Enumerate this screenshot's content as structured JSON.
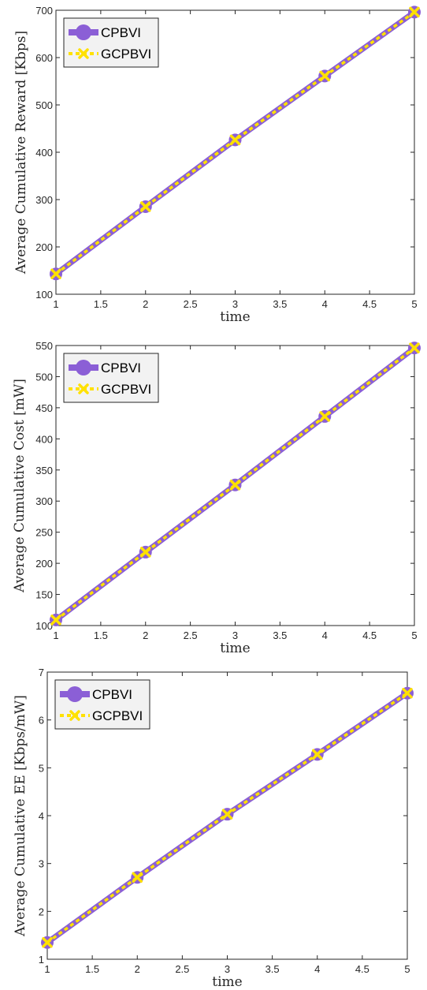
{
  "colors": {
    "series1": "#8b5fd6",
    "series2": "#ffe100",
    "axis": "#262626",
    "legend_bg": "#f2f2f2"
  },
  "chart_data": [
    {
      "type": "line",
      "xlabel": "time",
      "ylabel": "Average Cumulative Reward [Kbps]",
      "xlim": [
        1,
        5
      ],
      "ylim": [
        100,
        700
      ],
      "xticks": [
        "1",
        "1.5",
        "2",
        "2.5",
        "3",
        "3.5",
        "4",
        "4.5",
        "5"
      ],
      "yticks": [
        "100",
        "200",
        "300",
        "400",
        "500",
        "600",
        "700"
      ],
      "x": [
        1,
        2,
        3,
        4,
        5
      ],
      "legend": "top-left",
      "series": [
        {
          "name": "CPBVI",
          "values": [
            143,
            285,
            426,
            561,
            696
          ]
        },
        {
          "name": "GCPBVI",
          "values": [
            143,
            285,
            426,
            561,
            696
          ]
        }
      ]
    },
    {
      "type": "line",
      "xlabel": "time",
      "ylabel": "Average Cumulative Cost [mW]",
      "xlim": [
        1,
        5
      ],
      "ylim": [
        100,
        550
      ],
      "xticks": [
        "1",
        "1.5",
        "2",
        "2.5",
        "3",
        "3.5",
        "4",
        "4.5",
        "5"
      ],
      "yticks": [
        "100",
        "150",
        "200",
        "250",
        "300",
        "350",
        "400",
        "450",
        "500",
        "550"
      ],
      "x": [
        1,
        2,
        3,
        4,
        5
      ],
      "legend": "top-left",
      "series": [
        {
          "name": "CPBVI",
          "values": [
            109,
            218,
            326,
            436,
            546
          ]
        },
        {
          "name": "GCPBVI",
          "values": [
            109,
            218,
            326,
            436,
            546
          ]
        }
      ]
    },
    {
      "type": "line",
      "xlabel": "time",
      "ylabel": "Average Cumulative EE [Kbps/mW]",
      "xlim": [
        1,
        5
      ],
      "ylim": [
        1,
        7
      ],
      "xticks": [
        "1",
        "1.5",
        "2",
        "2.5",
        "3",
        "3.5",
        "4",
        "4.5",
        "5"
      ],
      "yticks": [
        "1",
        "2",
        "3",
        "4",
        "5",
        "6",
        "7"
      ],
      "x": [
        1,
        2,
        3,
        4,
        5
      ],
      "legend": "top-left",
      "series": [
        {
          "name": "CPBVI",
          "values": [
            1.35,
            2.71,
            4.03,
            5.28,
            6.56
          ]
        },
        {
          "name": "GCPBVI",
          "values": [
            1.35,
            2.71,
            4.03,
            5.28,
            6.56
          ]
        }
      ]
    }
  ]
}
